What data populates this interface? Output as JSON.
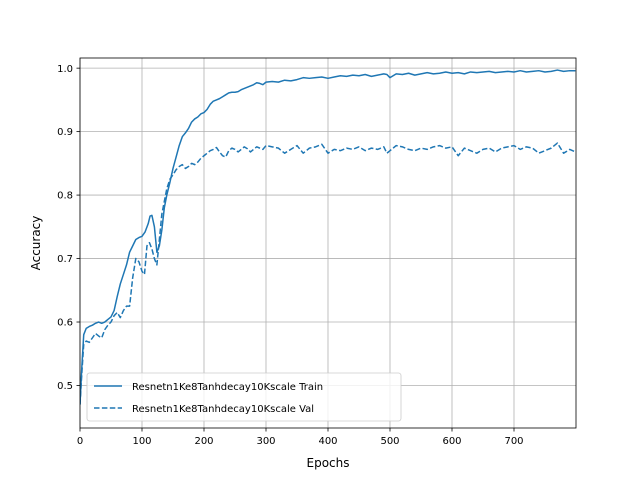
{
  "chart_data": {
    "type": "line",
    "title": "",
    "xlabel": "Epochs",
    "ylabel": "Accuracy",
    "xlim": [
      0,
      800
    ],
    "ylim": [
      0.433,
      1.016
    ],
    "x_ticks": [
      0,
      100,
      200,
      300,
      400,
      500,
      600,
      700
    ],
    "y_ticks": [
      0.5,
      0.6,
      0.7,
      0.8,
      0.9,
      1.0
    ],
    "x_tick_labels": [
      "0",
      "100",
      "200",
      "300",
      "400",
      "500",
      "600",
      "700"
    ],
    "y_tick_labels": [
      "0.5",
      "0.6",
      "0.7",
      "0.8",
      "0.9",
      "1.0"
    ],
    "grid": true,
    "legend_position": "lower-left",
    "series": [
      {
        "name": "Resnetn1Ke8Tanhdecay10Kscale Train",
        "color": "#1f77b4",
        "style": "solid",
        "x": [
          0,
          3,
          6,
          10,
          15,
          20,
          25,
          30,
          35,
          40,
          45,
          50,
          55,
          60,
          65,
          70,
          75,
          80,
          85,
          90,
          95,
          100,
          105,
          110,
          113,
          116,
          120,
          124,
          128,
          132,
          136,
          140,
          145,
          150,
          155,
          160,
          165,
          170,
          175,
          180,
          185,
          190,
          195,
          200,
          205,
          210,
          215,
          220,
          225,
          230,
          235,
          240,
          245,
          250,
          255,
          260,
          265,
          270,
          275,
          280,
          285,
          290,
          295,
          300,
          310,
          320,
          330,
          340,
          350,
          360,
          370,
          380,
          390,
          400,
          410,
          420,
          430,
          440,
          450,
          460,
          470,
          480,
          490,
          495,
          500,
          510,
          520,
          530,
          540,
          550,
          560,
          570,
          580,
          590,
          600,
          610,
          620,
          630,
          640,
          650,
          660,
          670,
          680,
          690,
          700,
          710,
          720,
          730,
          740,
          750,
          760,
          770,
          780,
          790,
          799
        ],
        "values": [
          0.47,
          0.53,
          0.58,
          0.59,
          0.593,
          0.595,
          0.598,
          0.6,
          0.598,
          0.6,
          0.604,
          0.608,
          0.618,
          0.64,
          0.66,
          0.675,
          0.69,
          0.71,
          0.72,
          0.73,
          0.733,
          0.735,
          0.742,
          0.755,
          0.767,
          0.768,
          0.75,
          0.71,
          0.72,
          0.745,
          0.78,
          0.8,
          0.82,
          0.842,
          0.86,
          0.878,
          0.892,
          0.898,
          0.905,
          0.915,
          0.92,
          0.923,
          0.928,
          0.93,
          0.935,
          0.943,
          0.948,
          0.95,
          0.952,
          0.955,
          0.958,
          0.961,
          0.962,
          0.962,
          0.963,
          0.966,
          0.968,
          0.97,
          0.972,
          0.974,
          0.977,
          0.976,
          0.974,
          0.978,
          0.979,
          0.978,
          0.981,
          0.98,
          0.982,
          0.985,
          0.984,
          0.985,
          0.986,
          0.984,
          0.986,
          0.988,
          0.987,
          0.989,
          0.988,
          0.99,
          0.987,
          0.989,
          0.991,
          0.99,
          0.985,
          0.991,
          0.99,
          0.992,
          0.989,
          0.991,
          0.993,
          0.991,
          0.992,
          0.994,
          0.992,
          0.993,
          0.991,
          0.994,
          0.993,
          0.994,
          0.995,
          0.993,
          0.994,
          0.995,
          0.994,
          0.996,
          0.994,
          0.995,
          0.996,
          0.994,
          0.995,
          0.997,
          0.995,
          0.996,
          0.996
        ]
      },
      {
        "name": "Resnetn1Ke8Tanhdecay10Kscale Val",
        "color": "#1f77b4",
        "style": "dashed",
        "x": [
          0,
          3,
          6,
          10,
          15,
          20,
          25,
          30,
          35,
          40,
          45,
          50,
          55,
          60,
          65,
          70,
          75,
          80,
          85,
          90,
          95,
          100,
          104,
          108,
          112,
          116,
          120,
          124,
          128,
          132,
          136,
          140,
          145,
          150,
          155,
          160,
          165,
          170,
          175,
          180,
          185,
          190,
          195,
          200,
          205,
          210,
          215,
          220,
          225,
          230,
          235,
          240,
          245,
          250,
          255,
          260,
          265,
          270,
          275,
          280,
          285,
          290,
          295,
          300,
          310,
          320,
          330,
          340,
          350,
          360,
          370,
          380,
          390,
          400,
          410,
          420,
          430,
          440,
          450,
          460,
          470,
          480,
          490,
          495,
          500,
          510,
          520,
          530,
          540,
          550,
          560,
          570,
          580,
          590,
          600,
          610,
          620,
          630,
          640,
          650,
          660,
          670,
          680,
          690,
          700,
          710,
          720,
          730,
          740,
          750,
          760,
          770,
          780,
          790,
          799
        ],
        "values": [
          0.47,
          0.52,
          0.565,
          0.57,
          0.568,
          0.575,
          0.582,
          0.578,
          0.575,
          0.588,
          0.595,
          0.6,
          0.61,
          0.615,
          0.607,
          0.618,
          0.625,
          0.625,
          0.67,
          0.7,
          0.695,
          0.68,
          0.675,
          0.72,
          0.725,
          0.715,
          0.7,
          0.69,
          0.73,
          0.77,
          0.79,
          0.81,
          0.825,
          0.832,
          0.84,
          0.845,
          0.848,
          0.842,
          0.845,
          0.85,
          0.848,
          0.852,
          0.858,
          0.862,
          0.866,
          0.87,
          0.872,
          0.875,
          0.868,
          0.862,
          0.86,
          0.87,
          0.874,
          0.872,
          0.868,
          0.872,
          0.876,
          0.873,
          0.868,
          0.872,
          0.876,
          0.874,
          0.872,
          0.878,
          0.876,
          0.874,
          0.866,
          0.872,
          0.878,
          0.866,
          0.874,
          0.876,
          0.88,
          0.866,
          0.872,
          0.87,
          0.874,
          0.872,
          0.876,
          0.87,
          0.874,
          0.872,
          0.876,
          0.866,
          0.87,
          0.878,
          0.876,
          0.872,
          0.87,
          0.874,
          0.872,
          0.876,
          0.878,
          0.874,
          0.876,
          0.862,
          0.874,
          0.87,
          0.866,
          0.872,
          0.874,
          0.868,
          0.874,
          0.876,
          0.878,
          0.872,
          0.876,
          0.874,
          0.866,
          0.87,
          0.874,
          0.882,
          0.866,
          0.872,
          0.868
        ]
      }
    ]
  }
}
